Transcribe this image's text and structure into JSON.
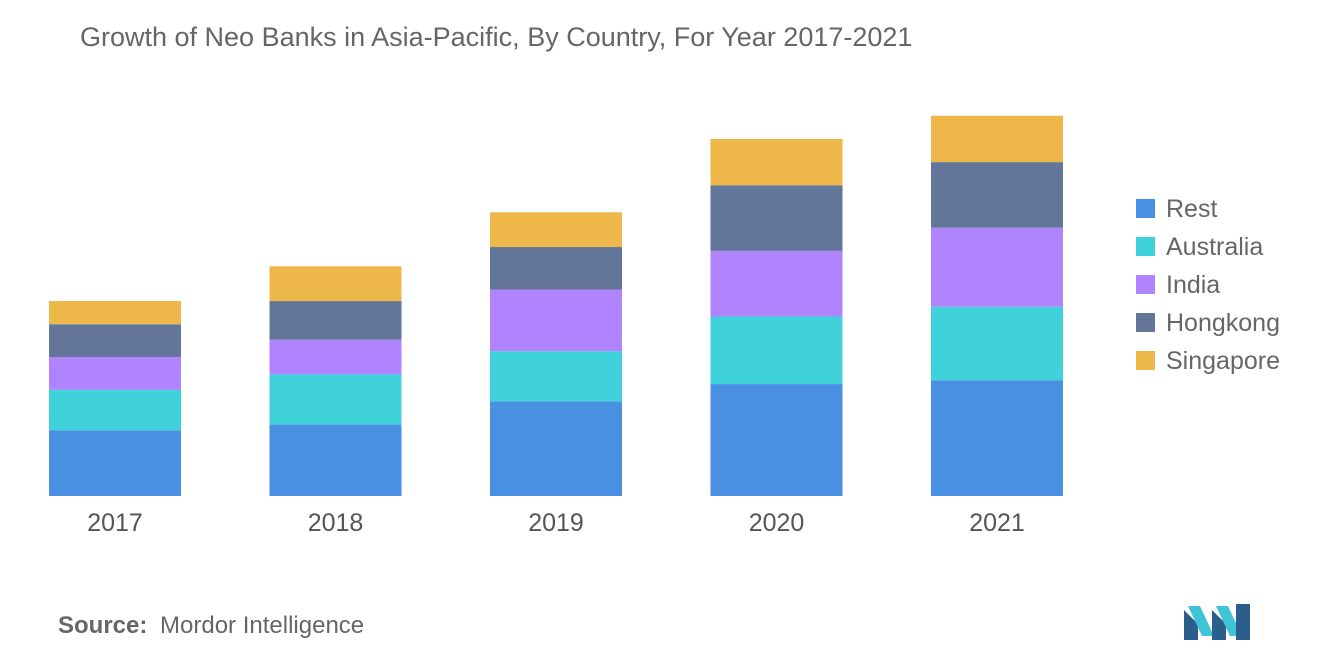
{
  "chart_data": {
    "type": "bar",
    "stacked": true,
    "title": "Growth of Neo Banks in Asia-Pacific, By Country, For Year 2017-2021",
    "xlabel": "",
    "ylabel": "",
    "ylim": [
      0,
      100
    ],
    "categories": [
      "2017",
      "2018",
      "2019",
      "2020",
      "2021"
    ],
    "series": [
      {
        "name": "Rest",
        "color": "#4A90E2",
        "values": [
          17,
          18.5,
          24.5,
          29,
          30
        ]
      },
      {
        "name": "Australia",
        "color": "#40D2DA",
        "values": [
          10.5,
          13,
          13,
          17.5,
          19
        ]
      },
      {
        "name": "India",
        "color": "#B084FE",
        "values": [
          8.5,
          9,
          16,
          17,
          20.5
        ]
      },
      {
        "name": "Hongkong",
        "color": "#637699",
        "values": [
          8.5,
          10,
          11,
          17,
          17
        ]
      },
      {
        "name": "Singapore",
        "color": "#EDB74A",
        "values": [
          6,
          9,
          9,
          12,
          12
        ]
      }
    ],
    "grid": false,
    "legend": "right"
  },
  "source": {
    "label": "Source:",
    "text": "Mordor Intelligence"
  }
}
